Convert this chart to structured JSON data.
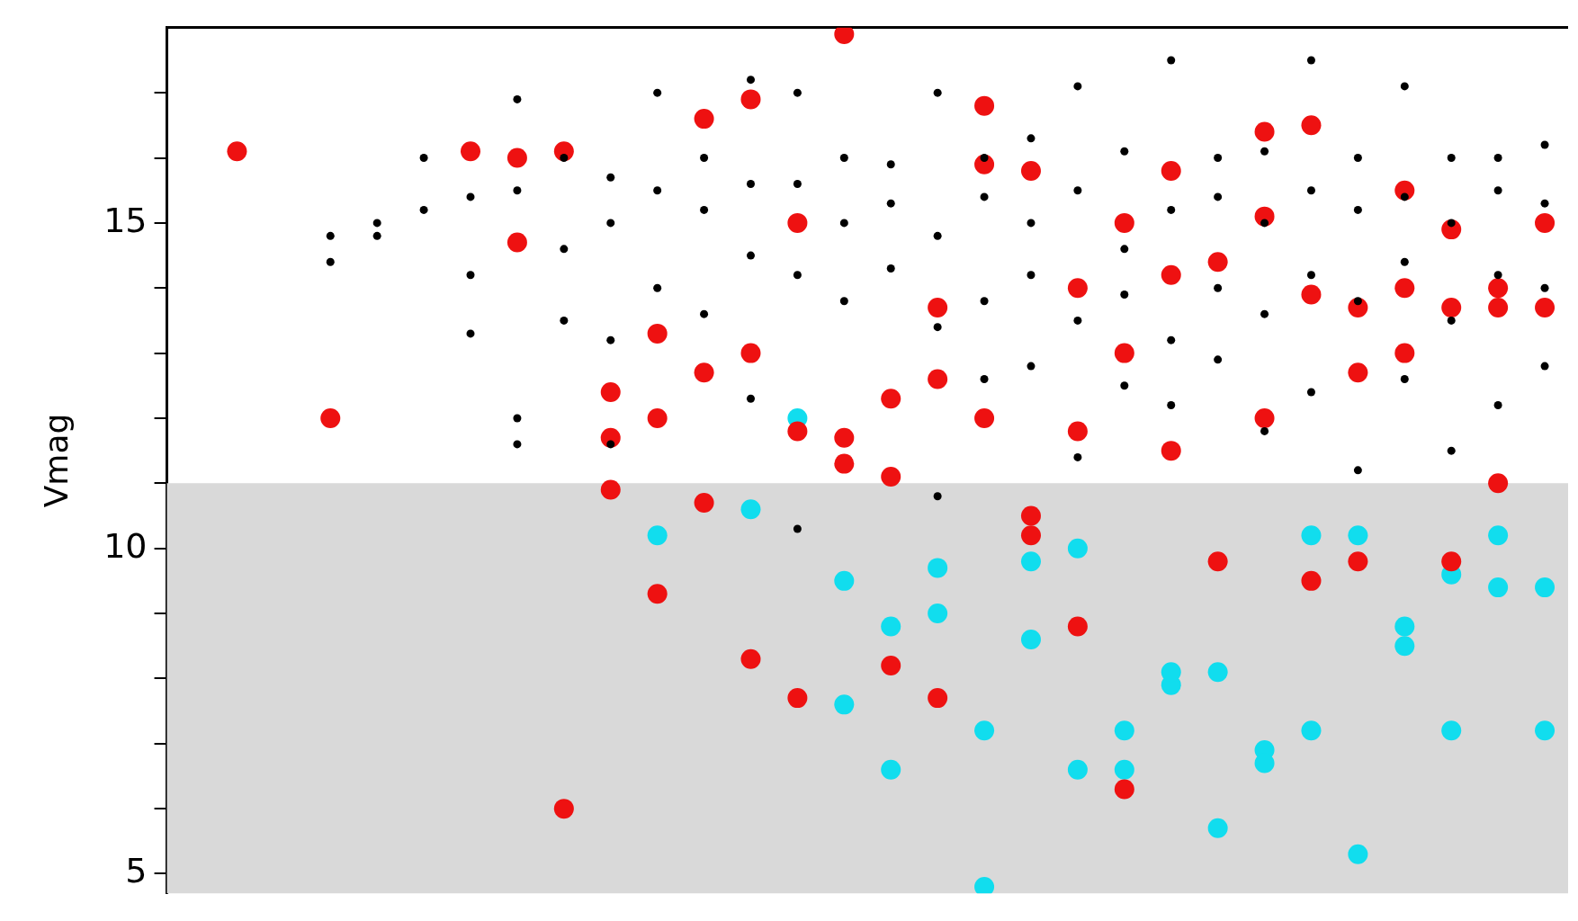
{
  "chart_data": {
    "type": "scatter",
    "ylabel": "Vmag",
    "marker": "circle",
    "grid": false,
    "legend": false,
    "tick_labels": "y",
    "categories": [
      null,
      null,
      null,
      null,
      null,
      null,
      null,
      null,
      null,
      null,
      null,
      null,
      null,
      null,
      null,
      null,
      null,
      null,
      null,
      null,
      null,
      null,
      null,
      null,
      null,
      null,
      null,
      null,
      null,
      null
    ],
    "ylim": [
      4.7,
      18
    ],
    "yticks": [
      {
        "value": 5,
        "label": "5"
      },
      {
        "value": 6,
        "label": null
      },
      {
        "value": 7,
        "label": null
      },
      {
        "value": 8,
        "label": null
      },
      {
        "value": 9,
        "label": null
      },
      {
        "value": 10,
        "label": "10"
      },
      {
        "value": 11,
        "label": null
      },
      {
        "value": 12,
        "label": null
      },
      {
        "value": 13,
        "label": null
      },
      {
        "value": 14,
        "label": null
      },
      {
        "value": 15,
        "label": "15"
      },
      {
        "value": 16,
        "label": null
      },
      {
        "value": 17,
        "label": null
      }
    ],
    "bands": [
      {
        "axis": "y",
        "from": 4.7,
        "to": 11,
        "color": "#d9d9d9"
      }
    ],
    "series": [
      {
        "color": "#000000",
        "values": [
          null,
          null,
          null,
          14.8,
          15.0,
          16.0,
          15.4,
          16.9,
          16.0,
          15.7,
          17.0,
          16.0,
          17.2,
          17.0,
          16.0,
          15.9,
          17.0,
          16.0,
          16.3,
          17.1,
          16.1,
          17.5,
          16.0,
          16.1,
          17.5,
          16.0,
          17.1,
          16.0,
          16.0,
          16.2
        ]
      },
      {
        "color": "#000000",
        "values": [
          null,
          null,
          null,
          14.4,
          14.8,
          15.2,
          14.2,
          15.5,
          13.5,
          15.0,
          14.0,
          15.2,
          14.5,
          15.6,
          15.0,
          15.3,
          14.8,
          15.4,
          15.0,
          15.5,
          14.6,
          15.2,
          15.4,
          15.0,
          15.5,
          15.2,
          15.4,
          15.0,
          15.5,
          15.3
        ]
      },
      {
        "color": "#000000",
        "values": [
          null,
          null,
          null,
          null,
          null,
          null,
          13.3,
          11.6,
          14.6,
          13.2,
          15.5,
          13.6,
          15.6,
          14.2,
          13.8,
          14.3,
          13.4,
          13.8,
          14.2,
          13.5,
          13.9,
          13.2,
          14.0,
          13.6,
          14.2,
          13.8,
          14.4,
          13.5,
          14.2,
          14.0
        ]
      },
      {
        "color": "#000000",
        "values": [
          null,
          null,
          null,
          null,
          null,
          null,
          null,
          12.0,
          null,
          11.6,
          null,
          null,
          12.3,
          10.3,
          null,
          null,
          10.8,
          12.6,
          12.8,
          11.4,
          12.5,
          12.2,
          12.9,
          11.8,
          12.4,
          11.2,
          12.6,
          11.5,
          12.2,
          12.8
        ]
      },
      {
        "color": "#ee1111",
        "values": [
          null,
          16.1,
          null,
          12.0,
          null,
          null,
          16.1,
          16.0,
          16.1,
          11.7,
          9.3,
          16.6,
          16.9,
          7.7,
          17.9,
          8.2,
          12.6,
          16.8,
          15.8,
          11.8,
          13.0,
          15.8,
          9.8,
          16.4,
          9.5,
          9.8,
          13.0,
          13.7,
          11.0,
          15.0
        ]
      },
      {
        "color": "#ee1111",
        "values": [
          null,
          null,
          null,
          null,
          null,
          null,
          null,
          14.7,
          6.0,
          10.9,
          12.0,
          10.7,
          8.3,
          15.0,
          11.7,
          11.1,
          7.7,
          15.9,
          10.5,
          8.8,
          6.3,
          11.5,
          null,
          12.0,
          16.5,
          12.7,
          15.5,
          9.8,
          14.0,
          13.7
        ]
      },
      {
        "color": "#ee1111",
        "values": [
          null,
          null,
          null,
          null,
          null,
          null,
          null,
          null,
          null,
          12.4,
          13.3,
          12.7,
          13.0,
          11.8,
          11.3,
          12.3,
          13.7,
          12.0,
          10.2,
          14.0,
          15.0,
          14.2,
          14.4,
          15.1,
          13.9,
          13.7,
          14.0,
          14.9,
          13.7,
          null
        ]
      },
      {
        "color": "#11ddee",
        "values": [
          null,
          null,
          null,
          null,
          null,
          null,
          null,
          null,
          null,
          null,
          10.2,
          null,
          10.6,
          12.0,
          7.6,
          8.8,
          9.7,
          4.8,
          9.8,
          10.0,
          7.2,
          8.1,
          8.1,
          6.7,
          10.2,
          10.2,
          8.8,
          7.2,
          10.2,
          7.2
        ]
      },
      {
        "color": "#11ddee",
        "values": [
          null,
          null,
          null,
          null,
          null,
          null,
          null,
          null,
          null,
          null,
          null,
          null,
          null,
          null,
          9.5,
          6.6,
          9.0,
          7.2,
          8.6,
          6.6,
          6.6,
          7.9,
          5.7,
          6.9,
          7.2,
          5.3,
          8.5,
          9.6,
          9.4,
          9.4
        ]
      }
    ]
  }
}
